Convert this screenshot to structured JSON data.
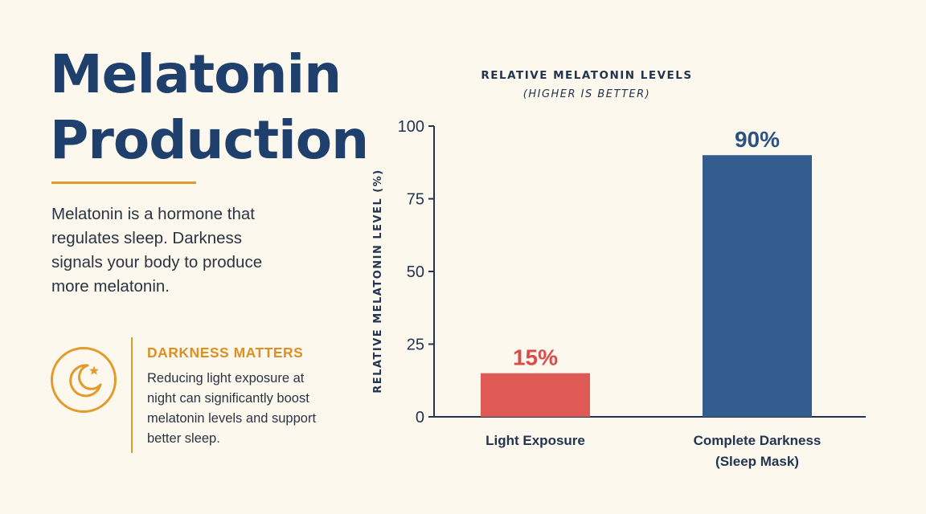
{
  "infographic": {
    "title_line1": "Melatonin",
    "title_line2": "Production",
    "intro": "Melatonin is a hormone that regulates sleep. Darkness signals your body to produce more melatonin.",
    "callout": {
      "icon": "moon-star-icon",
      "heading": "DARKNESS MATTERS",
      "body": "Reducing light exposure at night can significantly boost melatonin levels and support better sleep."
    }
  },
  "chart_data": {
    "type": "bar",
    "title": "RELATIVE MELATONIN LEVELS",
    "subtitle": "(HIGHER IS BETTER)",
    "ylabel": "RELATIVE MELATONIN LEVEL (%)",
    "xlabel": "",
    "ylim": [
      0,
      100
    ],
    "yticks": [
      0,
      25,
      50,
      75,
      100
    ],
    "grid": false,
    "categories": [
      [
        "Light Exposure"
      ],
      [
        "Complete Darkness",
        "(Sleep Mask)"
      ]
    ],
    "values": [
      15,
      90
    ],
    "data_labels": [
      "15%",
      "90%"
    ],
    "colors": [
      "#e05a55",
      "#345d8f"
    ],
    "label_colors": [
      "#d94c4a",
      "#2c5283"
    ]
  },
  "colors": {
    "background": "#fcf8ee",
    "title": "#1f3f6c",
    "accent": "#e39a2c",
    "axis": "#22344f"
  }
}
